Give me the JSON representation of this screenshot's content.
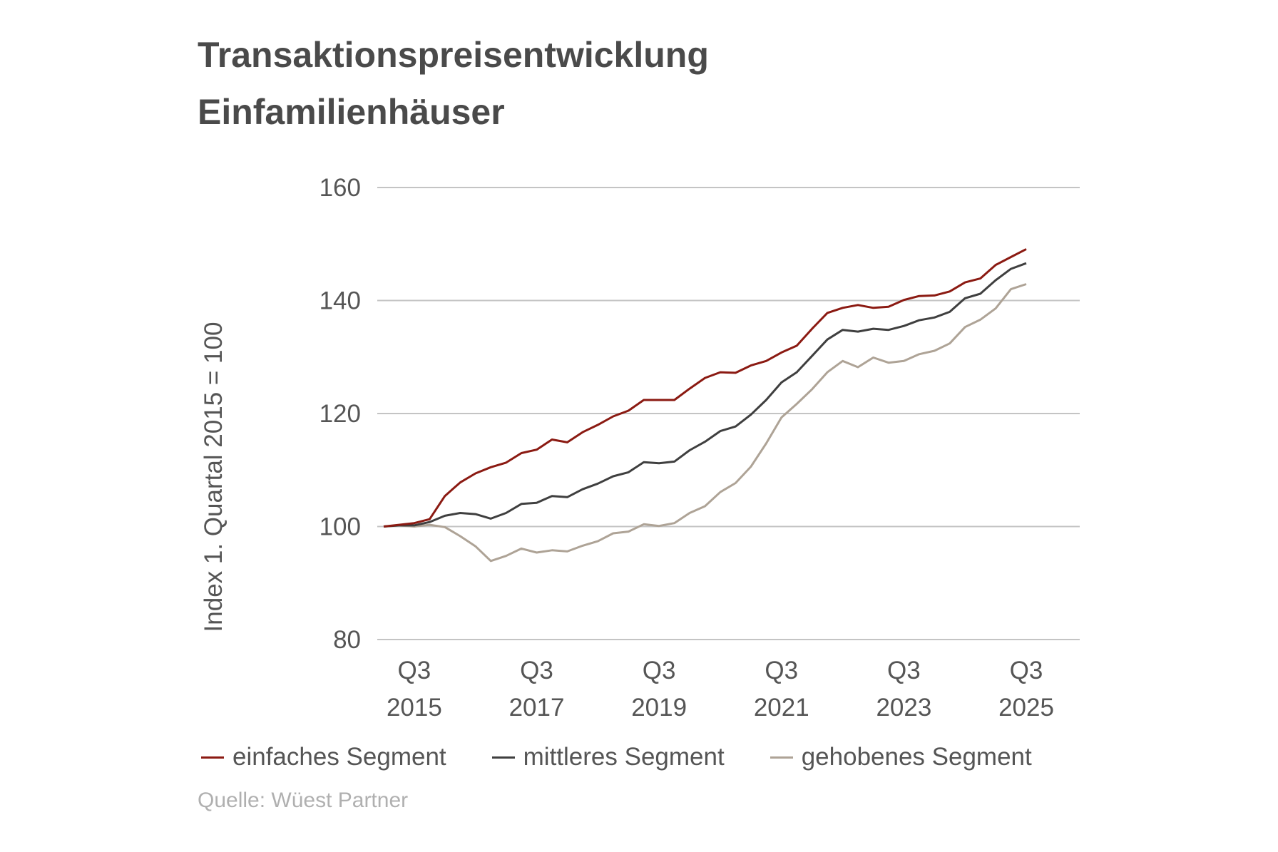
{
  "title_line1": "Transaktionspreisentwicklung",
  "title_line2": "Einfamilienhäuser",
  "source": "Quelle: Wüest Partner",
  "chart_data": {
    "type": "line",
    "title": "Transaktionspreisentwicklung Einfamilienhäuser",
    "ylabel": "Index 1. Quartal 2015 = 100",
    "xlabel": "",
    "ylim": [
      80,
      160
    ],
    "yticks": [
      80,
      100,
      120,
      140,
      160
    ],
    "grid": "horizontal",
    "legend": "bottom",
    "x_start": "Q1 2015",
    "x_end": "Q3 2025",
    "x_tick_labels": [
      {
        "q": "Q3",
        "year": "2015",
        "index": 2
      },
      {
        "q": "Q3",
        "year": "2017",
        "index": 10
      },
      {
        "q": "Q3",
        "year": "2019",
        "index": 18
      },
      {
        "q": "Q3",
        "year": "2021",
        "index": 26
      },
      {
        "q": "Q3",
        "year": "2023",
        "index": 34
      },
      {
        "q": "Q3",
        "year": "2025",
        "index": 42
      }
    ],
    "series": [
      {
        "name": "einfaches Segment",
        "color": "#8b1a12",
        "values": [
          100,
          100.3,
          100.6,
          101.3,
          105.4,
          107.8,
          109.4,
          110.5,
          111.3,
          113.0,
          113.6,
          115.4,
          114.9,
          116.7,
          118.0,
          119.5,
          120.5,
          122.4,
          122.4,
          122.4,
          124.4,
          126.3,
          127.3,
          127.2,
          128.5,
          129.3,
          130.8,
          132.0,
          135.0,
          137.8,
          138.7,
          139.2,
          138.7,
          138.9,
          140.1,
          140.8,
          140.9,
          141.6,
          143.2,
          143.9,
          146.3,
          147.7,
          149.1
        ]
      },
      {
        "name": "mittleres Segment",
        "color": "#3f3f3f",
        "values": [
          100,
          100.2,
          100.2,
          100.8,
          101.9,
          102.4,
          102.2,
          101.4,
          102.4,
          104.0,
          104.2,
          105.4,
          105.2,
          106.6,
          107.6,
          108.9,
          109.6,
          111.4,
          111.2,
          111.5,
          113.5,
          115.0,
          116.9,
          117.7,
          119.8,
          122.4,
          125.5,
          127.3,
          130.2,
          133.1,
          134.8,
          134.5,
          135.0,
          134.8,
          135.5,
          136.5,
          137.0,
          138.0,
          140.4,
          141.2,
          143.6,
          145.6,
          146.6
        ]
      },
      {
        "name": "gehobenes Segment",
        "color": "#aea396",
        "values": [
          100,
          100.2,
          100,
          100.3,
          99.9,
          98.3,
          96.5,
          93.9,
          94.8,
          96.1,
          95.4,
          95.8,
          95.6,
          96.6,
          97.4,
          98.8,
          99.1,
          100.4,
          100.1,
          100.6,
          102.4,
          103.6,
          106.1,
          107.7,
          110.6,
          114.7,
          119.3,
          121.7,
          124.3,
          127.3,
          129.3,
          128.2,
          129.9,
          129.0,
          129.3,
          130.5,
          131.1,
          132.4,
          135.3,
          136.6,
          138.6,
          142.0,
          142.9
        ]
      }
    ]
  }
}
